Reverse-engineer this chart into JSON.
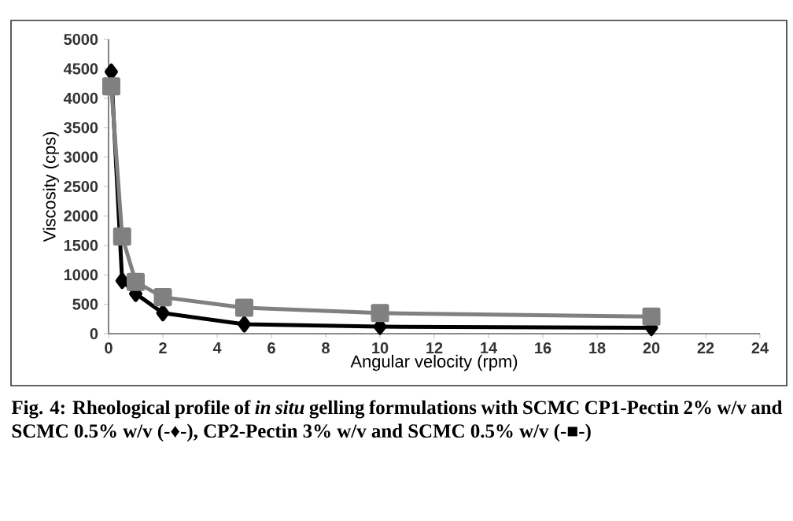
{
  "chart_data": {
    "type": "line",
    "xlabel": "Angular velocity (rpm)",
    "ylabel": "Viscosity (cps)",
    "x": [
      0.1,
      0.5,
      1,
      2,
      5,
      10,
      20
    ],
    "series": [
      {
        "color": "#000000",
        "marker": "diamond",
        "values": [
          4450,
          900,
          680,
          350,
          160,
          120,
          100
        ]
      },
      {
        "color": "#808080",
        "marker": "square",
        "values": [
          4200,
          1650,
          880,
          620,
          440,
          350,
          290
        ]
      }
    ],
    "xlim": [
      0,
      24
    ],
    "xticks": [
      0,
      2,
      4,
      6,
      8,
      10,
      12,
      14,
      16,
      18,
      20,
      22,
      24
    ],
    "ylim": [
      0,
      5000
    ],
    "yticks": [
      0,
      500,
      1000,
      1500,
      2000,
      2500,
      3000,
      3500,
      4000,
      4500,
      5000
    ],
    "grid": false,
    "line_style": "solid",
    "annotations": [
      "Fig. 4: Rheological profile of *in situ* gelling formulations with SCMC CP1-Pectin 2% w/v and SCMC 0.5% w/v (-♦-), CP2-Pectin 3% w/v and SCMC 0.5% w/v (-■-)"
    ]
  }
}
